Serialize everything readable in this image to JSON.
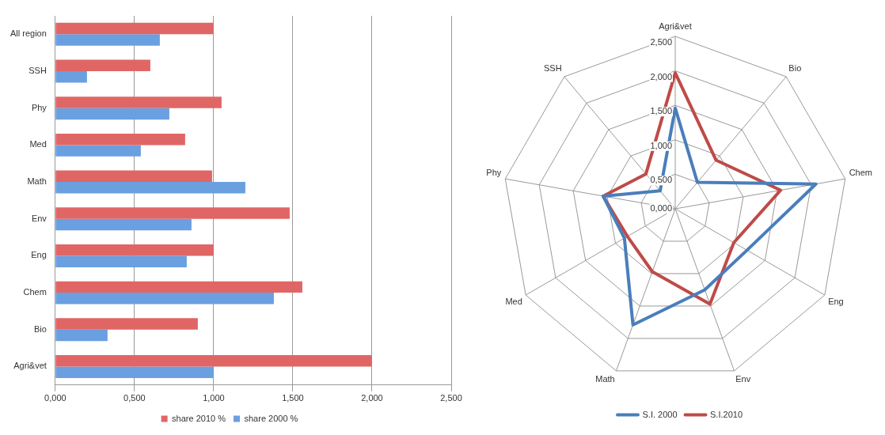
{
  "chart_data": [
    {
      "type": "bar",
      "orientation": "horizontal",
      "categories": [
        "All region",
        "SSH",
        "Phy",
        "Med",
        "Math",
        "Env",
        "Eng",
        "Chem",
        "Bio",
        "Agri&vet"
      ],
      "series": [
        {
          "name": "share 2010 %",
          "color": "#e06666",
          "values": [
            1.0,
            0.6,
            1.05,
            0.82,
            0.99,
            1.48,
            1.0,
            1.56,
            0.9,
            2.0
          ]
        },
        {
          "name": "share 2000 %",
          "color": "#6a9fe0",
          "values": [
            0.66,
            0.2,
            0.72,
            0.54,
            1.2,
            0.86,
            0.83,
            1.38,
            0.33,
            1.0
          ]
        }
      ],
      "xlim": [
        0,
        2.5
      ],
      "xticks": [
        {
          "value": 0,
          "label": "0,000"
        },
        {
          "value": 0.5,
          "label": "0,500"
        },
        {
          "value": 1,
          "label": "1,000"
        },
        {
          "value": 1.5,
          "label": "1,500"
        },
        {
          "value": 2,
          "label": "2,000"
        },
        {
          "value": 2.5,
          "label": "2,500"
        }
      ],
      "grid": "x",
      "legend": "bottom"
    },
    {
      "type": "radar",
      "categories": [
        "Agri&vet",
        "Bio",
        "Chem",
        "Eng",
        "Env",
        "Math",
        "Med",
        "Phy",
        "SSH"
      ],
      "series": [
        {
          "name": "S.I. 2000",
          "color": "#4a7ebb",
          "values": [
            1.46,
            0.5,
            2.07,
            1.2,
            1.25,
            1.79,
            0.85,
            1.06,
            0.34
          ]
        },
        {
          "name": "S.I.2010",
          "color": "#be4b48",
          "values": [
            1.97,
            0.92,
            1.55,
            0.98,
            1.47,
            0.97,
            0.8,
            1.06,
            0.66
          ]
        }
      ],
      "ylim": [
        0,
        2.5
      ],
      "yticks": [
        {
          "value": 0,
          "label": "0,000"
        },
        {
          "value": 0.5,
          "label": "0,500"
        },
        {
          "value": 1,
          "label": "1,000"
        },
        {
          "value": 1.5,
          "label": "1,500"
        },
        {
          "value": 2,
          "label": "2,000"
        },
        {
          "value": 2.5,
          "label": "2,500"
        }
      ],
      "grid": true,
      "marker": "none",
      "legend": "bottom"
    }
  ]
}
